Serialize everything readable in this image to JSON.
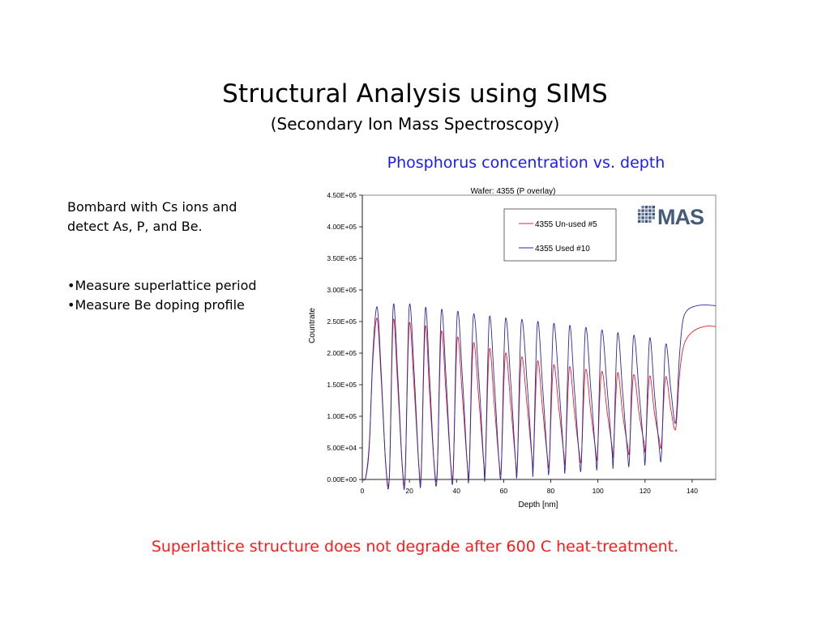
{
  "slide": {
    "title": "Structural Analysis using SIMS",
    "subtitle": "(Secondary Ion Mass Spectroscopy)",
    "chart_heading": "Phosphorus concentration vs. depth",
    "left_paragraph_line1": "Bombard with Cs ions and",
    "left_paragraph_line2": "detect As, P, and Be.",
    "bullets": [
      "Measure superlattice period",
      "Measure Be doping profile"
    ],
    "bullet_symbol": "•",
    "conclusion": "Superlattice structure does not degrade after 600 C heat-treatment.",
    "logo_text": "MAS"
  },
  "colors": {
    "chart_heading": "#1a1aff",
    "conclusion": "#ff1a1a",
    "series_unused": "#e8202a",
    "series_used": "#2a2aa8"
  },
  "chart_data": {
    "type": "line",
    "title": "Wafer: 4355 (P overlay)",
    "xlabel": "Depth [nm]",
    "ylabel": "Countrate",
    "xlim": [
      0,
      150
    ],
    "ylim": [
      0,
      450000
    ],
    "x_ticks": [
      0,
      20,
      40,
      60,
      80,
      100,
      120,
      140
    ],
    "y_ticks": [
      0,
      50000,
      100000,
      150000,
      200000,
      250000,
      300000,
      350000,
      400000,
      450000
    ],
    "y_tick_labels": [
      "0.00E+00",
      "5.00E+04",
      "1.00E+05",
      "1.50E+05",
      "2.00E+05",
      "2.50E+05",
      "3.00E+05",
      "3.50E+05",
      "4.00E+05",
      "4.50E+05"
    ],
    "legend_position": "top-right",
    "series": [
      {
        "name": "4355 Un-used #5",
        "color": "#e8202a",
        "x": [
          0,
          1.5,
          3,
          4.5,
          6.3,
          8,
          10,
          11.5,
          13.1,
          15,
          17,
          18.2,
          19.9,
          22,
          24,
          25,
          26.7,
          28.5,
          30.5,
          31.8,
          33.5,
          35.5,
          37.5,
          38.6,
          40.3,
          42.5,
          44.5,
          45.4,
          47.1,
          49.5,
          51.5,
          52.2,
          53.9,
          56,
          58,
          59,
          60.7,
          63,
          65,
          65.8,
          67.5,
          70,
          72,
          72.6,
          74.3,
          76.5,
          78.5,
          79.4,
          81.1,
          83.5,
          85.5,
          86.2,
          87.9,
          90,
          92,
          93,
          94.7,
          97,
          99,
          99.8,
          101.5,
          104,
          106,
          106.6,
          108.3,
          110.5,
          112.5,
          113.4,
          115.1,
          117.5,
          119.5,
          120.2,
          121.9,
          124,
          126,
          127,
          128.7,
          131,
          133,
          134.5,
          136,
          138,
          141,
          144,
          147,
          150
        ],
        "y": [
          0,
          5000,
          60000,
          190000,
          255000,
          160000,
          22000,
          8000,
          250000,
          150000,
          20000,
          10000,
          245000,
          145000,
          22000,
          12000,
          240000,
          140000,
          24000,
          14000,
          232000,
          138000,
          26000,
          16000,
          223000,
          130000,
          27000,
          18000,
          214000,
          125000,
          28000,
          20000,
          205000,
          120000,
          30000,
          22000,
          198000,
          118000,
          32000,
          24000,
          192000,
          115000,
          35000,
          27000,
          186000,
          112000,
          38000,
          30000,
          180000,
          110000,
          42000,
          34000,
          177000,
          108000,
          45000,
          36000,
          173000,
          106000,
          48000,
          39000,
          170000,
          105000,
          52000,
          43000,
          168000,
          104000,
          56000,
          47000,
          165000,
          104000,
          60000,
          50000,
          163000,
          105000,
          64000,
          56000,
          162000,
          110000,
          80000,
          160000,
          205000,
          225000,
          236000,
          241000,
          243000,
          242000
        ]
      },
      {
        "name": "4355 Used #10",
        "color": "#2a2aa8",
        "x": [
          0,
          1.5,
          3,
          4.5,
          6.3,
          8,
          10,
          11.5,
          13.1,
          15,
          17,
          18.2,
          19.9,
          22,
          24,
          25,
          26.7,
          28.5,
          30.5,
          31.8,
          33.5,
          35.5,
          37.5,
          38.6,
          40.3,
          42.5,
          44.5,
          45.4,
          47.1,
          49.5,
          51.5,
          52.2,
          53.9,
          56,
          58,
          59,
          60.7,
          63,
          65,
          65.8,
          67.5,
          70,
          72,
          72.6,
          74.3,
          76.5,
          78.5,
          79.4,
          81.1,
          83.5,
          85.5,
          86.2,
          87.9,
          90,
          92,
          93,
          94.7,
          97,
          99,
          99.8,
          101.5,
          104,
          106,
          106.6,
          108.3,
          110.5,
          112.5,
          113.4,
          115.1,
          117.5,
          119.5,
          120.2,
          121.9,
          124,
          126,
          127,
          128.7,
          131,
          133,
          134.5,
          136,
          138,
          141,
          144,
          147,
          150
        ],
        "y": [
          0,
          4000,
          55000,
          200000,
          273000,
          170000,
          20000,
          6000,
          273000,
          168000,
          18000,
          6000,
          273000,
          168000,
          20000,
          8000,
          268000,
          165000,
          22000,
          10000,
          265000,
          163000,
          24000,
          12000,
          262000,
          160000,
          26000,
          14000,
          258000,
          158000,
          28000,
          16000,
          255000,
          155000,
          30000,
          18000,
          252000,
          153000,
          32000,
          20000,
          250000,
          150000,
          34000,
          22000,
          247000,
          148000,
          36000,
          24000,
          244000,
          146000,
          38000,
          26000,
          241000,
          144000,
          40000,
          28000,
          238000,
          142000,
          42000,
          30000,
          234000,
          140000,
          44000,
          32000,
          230000,
          138000,
          46000,
          34000,
          226000,
          137000,
          48000,
          36000,
          222000,
          136000,
          52000,
          40000,
          212000,
          140000,
          90000,
          190000,
          250000,
          268000,
          274000,
          276000,
          276000,
          275000
        ]
      }
    ]
  }
}
